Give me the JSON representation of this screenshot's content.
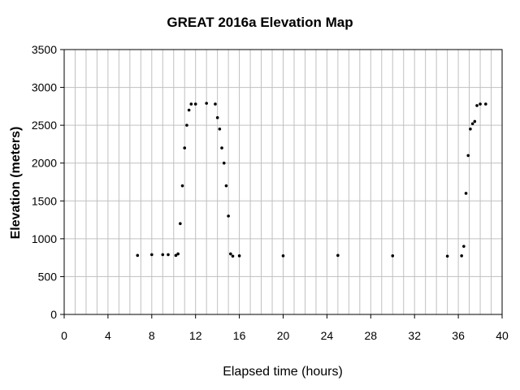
{
  "chart_data": {
    "type": "scatter",
    "title": "GREAT 2016a Elevation Map",
    "xlabel": "Elapsed time (hours)",
    "ylabel": "Elevation (meters)",
    "xlim": [
      0,
      40
    ],
    "ylim": [
      0,
      3500
    ],
    "xticks": [
      0,
      4,
      8,
      12,
      16,
      20,
      24,
      28,
      32,
      36,
      40
    ],
    "yticks": [
      0,
      500,
      1000,
      1500,
      2000,
      2500,
      3000,
      3500
    ],
    "xtick_labels": [
      "0",
      "4",
      "8",
      "12",
      "16",
      "20",
      "24",
      "28",
      "32",
      "36",
      "40"
    ],
    "ytick_labels": [
      "0",
      "500",
      "1000",
      "1500",
      "2000",
      "2500",
      "3000",
      "3500"
    ],
    "grid": true,
    "legend": "none",
    "colors": {
      "points": "#000000",
      "grid": "#c0c0c0",
      "axis": "#000000",
      "background": "#ffffff"
    },
    "series": [
      {
        "x": [
          6.7,
          8.0,
          9.0,
          9.5,
          10.2,
          10.4,
          10.6,
          10.8,
          11.0,
          11.2,
          11.4,
          11.6,
          12.0,
          13.0,
          13.8,
          14.0,
          14.2,
          14.4,
          14.6,
          14.8,
          15.0,
          15.2,
          15.4,
          16.0,
          20.0,
          25.0,
          30.0,
          35.0,
          36.3,
          36.5,
          36.7,
          36.9,
          37.1,
          37.3,
          37.5,
          37.7,
          38.0,
          38.5
        ],
        "y": [
          780,
          790,
          790,
          790,
          780,
          800,
          1200,
          1700,
          2200,
          2500,
          2700,
          2780,
          2780,
          2790,
          2780,
          2600,
          2450,
          2200,
          2000,
          1700,
          1300,
          800,
          770,
          775,
          775,
          780,
          775,
          770,
          775,
          900,
          1600,
          2100,
          2450,
          2520,
          2550,
          2760,
          2780,
          2780
        ]
      }
    ]
  }
}
